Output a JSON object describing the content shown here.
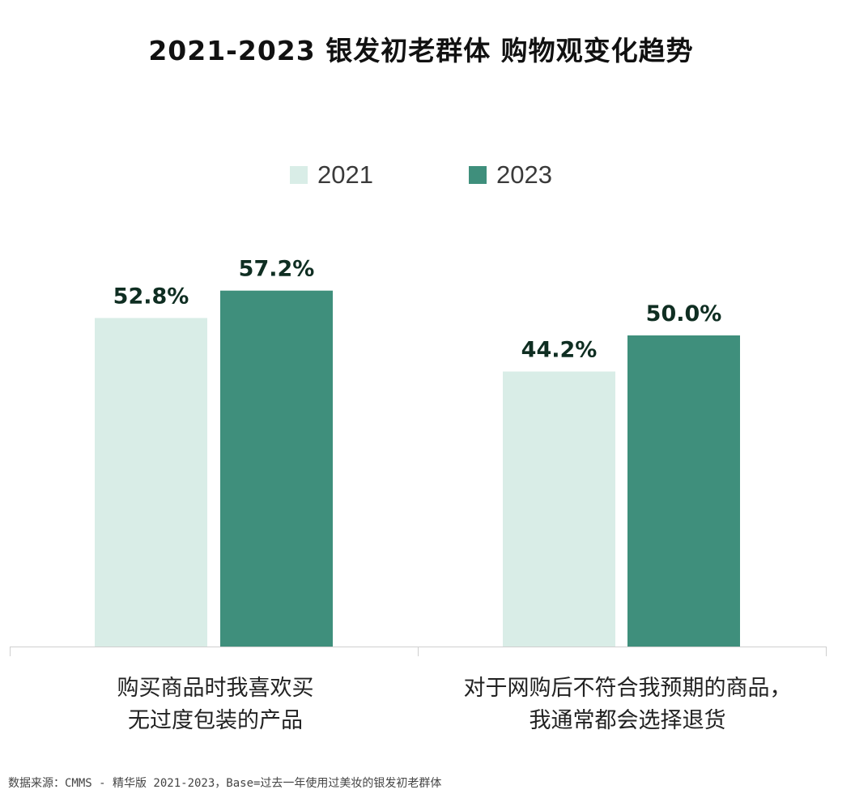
{
  "chart_data": {
    "type": "bar",
    "title": "2021-2023 银发初老群体 购物观变化趋势",
    "categories": [
      [
        "购买商品时我喜欢买",
        "无过度包装的产品"
      ],
      [
        "对于网购后不符合我预期的商品，",
        "我通常都会选择退货"
      ]
    ],
    "series": [
      {
        "name": "2021",
        "values": [
          52.8,
          44.2
        ],
        "labels": [
          "52.8%",
          "44.2%"
        ],
        "color": "#d9ede7"
      },
      {
        "name": "2023",
        "values": [
          57.2,
          50.0
        ],
        "labels": [
          "57.2%",
          "50.0%"
        ],
        "color": "#3f8f7c"
      }
    ],
    "ylim": [
      0,
      60
    ],
    "legend_position": "top-center",
    "grid": false,
    "xlabel": "",
    "ylabel": ""
  },
  "source": "数据来源：CMMS - 精华版 2021-2023，Base=过去一年使用过美妆的银发初老群体"
}
